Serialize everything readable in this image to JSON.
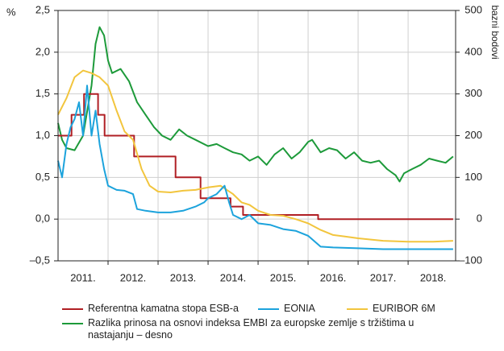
{
  "chart_data": {
    "type": "line",
    "y_label": "%",
    "y2_label": "bazni bodovi",
    "xlim": [
      2011,
      2018.95
    ],
    "xticks": [
      {
        "value": 2011.5,
        "label": "2011."
      },
      {
        "value": 2012.5,
        "label": "2012."
      },
      {
        "value": 2013.5,
        "label": "2013."
      },
      {
        "value": 2014.5,
        "label": "2014."
      },
      {
        "value": 2015.5,
        "label": "2015."
      },
      {
        "value": 2016.5,
        "label": "2016."
      },
      {
        "value": 2017.5,
        "label": "2017."
      },
      {
        "value": 2018.5,
        "label": "2018."
      }
    ],
    "xgrid": [
      2012,
      2013,
      2014,
      2015,
      2016,
      2017,
      2018
    ],
    "ylim": [
      -0.5,
      2.5
    ],
    "yticks": [
      {
        "value": 2.5,
        "label": "2,5"
      },
      {
        "value": 2.0,
        "label": "2,0"
      },
      {
        "value": 1.5,
        "label": "1,5"
      },
      {
        "value": 1.0,
        "label": "1,0"
      },
      {
        "value": 0.5,
        "label": "0,5"
      },
      {
        "value": 0.0,
        "label": "0,0"
      },
      {
        "value": -0.5,
        "label": "–0,5"
      }
    ],
    "y2lim": [
      -100,
      500
    ],
    "y2ticks": [
      500,
      400,
      300,
      200,
      100,
      0,
      {
        "value": -100,
        "label": "–100"
      }
    ],
    "grid": true,
    "series": [
      {
        "name": "Referentna kamatna stopa ESB-a",
        "color": "#b01f24",
        "x": [
          2011.0,
          2011.27,
          2011.27,
          2011.52,
          2011.52,
          2011.8,
          2011.8,
          2011.93,
          2011.93,
          2012.52,
          2012.52,
          2013.35,
          2013.35,
          2013.85,
          2013.85,
          2014.45,
          2014.45,
          2014.7,
          2014.7,
          2016.2,
          2016.2,
          2018.9
        ],
        "values": [
          1,
          1,
          1.25,
          1.25,
          1.5,
          1.5,
          1.25,
          1.25,
          1,
          1,
          0.75,
          0.75,
          0.5,
          0.5,
          0.25,
          0.25,
          0.15,
          0.15,
          0.05,
          0.05,
          0,
          0
        ]
      },
      {
        "name": "EONIA",
        "color": "#1ca3dc",
        "x": [
          2011.0,
          2011.08,
          2011.17,
          2011.25,
          2011.33,
          2011.42,
          2011.5,
          2011.58,
          2011.67,
          2011.75,
          2011.83,
          2011.92,
          2012.0,
          2012.17,
          2012.33,
          2012.5,
          2012.58,
          2012.75,
          2013.0,
          2013.25,
          2013.5,
          2013.75,
          2013.92,
          2014.0,
          2014.17,
          2014.33,
          2014.42,
          2014.5,
          2014.67,
          2014.83,
          2015.0,
          2015.25,
          2015.5,
          2015.75,
          2016.0,
          2016.25,
          2016.5,
          2017.0,
          2017.5,
          2018.0,
          2018.5,
          2018.9
        ],
        "values": [
          0.7,
          0.5,
          0.9,
          1.1,
          1.2,
          1.4,
          1.0,
          1.6,
          1.0,
          1.3,
          0.9,
          0.6,
          0.4,
          0.35,
          0.34,
          0.3,
          0.12,
          0.1,
          0.08,
          0.08,
          0.1,
          0.15,
          0.2,
          0.25,
          0.3,
          0.4,
          0.2,
          0.05,
          0.0,
          0.05,
          -0.05,
          -0.07,
          -0.12,
          -0.14,
          -0.2,
          -0.33,
          -0.34,
          -0.35,
          -0.36,
          -0.36,
          -0.36,
          -0.36
        ]
      },
      {
        "name": "EURIBOR 6M",
        "color": "#f2c53d",
        "x": [
          2011.0,
          2011.17,
          2011.33,
          2011.5,
          2011.67,
          2011.83,
          2012.0,
          2012.17,
          2012.33,
          2012.5,
          2012.67,
          2012.83,
          2013.0,
          2013.25,
          2013.5,
          2013.75,
          2014.0,
          2014.25,
          2014.5,
          2014.67,
          2014.83,
          2015.0,
          2015.25,
          2015.5,
          2015.75,
          2016.0,
          2016.25,
          2016.5,
          2016.75,
          2017.0,
          2017.5,
          2018.0,
          2018.5,
          2018.9
        ],
        "values": [
          1.25,
          1.45,
          1.7,
          1.78,
          1.75,
          1.7,
          1.6,
          1.3,
          1.05,
          0.95,
          0.6,
          0.4,
          0.33,
          0.32,
          0.34,
          0.35,
          0.38,
          0.4,
          0.3,
          0.2,
          0.17,
          0.1,
          0.05,
          0.04,
          0.0,
          -0.05,
          -0.13,
          -0.19,
          -0.21,
          -0.23,
          -0.26,
          -0.27,
          -0.27,
          -0.26
        ]
      },
      {
        "name": "Razlika prinosa na osnovi indeksa EMBI za europske zemlje s tržištima u nastajanju – desno",
        "color": "#1d9a3a",
        "axis": "y2",
        "x": [
          2011.0,
          2011.08,
          2011.17,
          2011.33,
          2011.5,
          2011.67,
          2011.75,
          2011.83,
          2011.92,
          2012.0,
          2012.08,
          2012.25,
          2012.42,
          2012.58,
          2012.75,
          2012.92,
          2013.08,
          2013.25,
          2013.42,
          2013.58,
          2013.75,
          2014.0,
          2014.17,
          2014.33,
          2014.5,
          2014.67,
          2014.83,
          2015.0,
          2015.17,
          2015.33,
          2015.5,
          2015.67,
          2015.83,
          2016.0,
          2016.08,
          2016.25,
          2016.42,
          2016.58,
          2016.75,
          2016.92,
          2017.08,
          2017.25,
          2017.42,
          2017.58,
          2017.75,
          2017.83,
          2017.92,
          2018.08,
          2018.25,
          2018.42,
          2018.58,
          2018.75,
          2018.9
        ],
        "values": [
          230,
          190,
          170,
          165,
          200,
          320,
          420,
          460,
          440,
          380,
          350,
          360,
          330,
          280,
          250,
          220,
          200,
          190,
          215,
          200,
          190,
          175,
          180,
          170,
          160,
          155,
          140,
          150,
          130,
          155,
          170,
          145,
          160,
          185,
          190,
          160,
          170,
          165,
          145,
          160,
          140,
          135,
          140,
          120,
          105,
          90,
          110,
          120,
          130,
          145,
          140,
          135,
          150
        ]
      }
    ]
  }
}
